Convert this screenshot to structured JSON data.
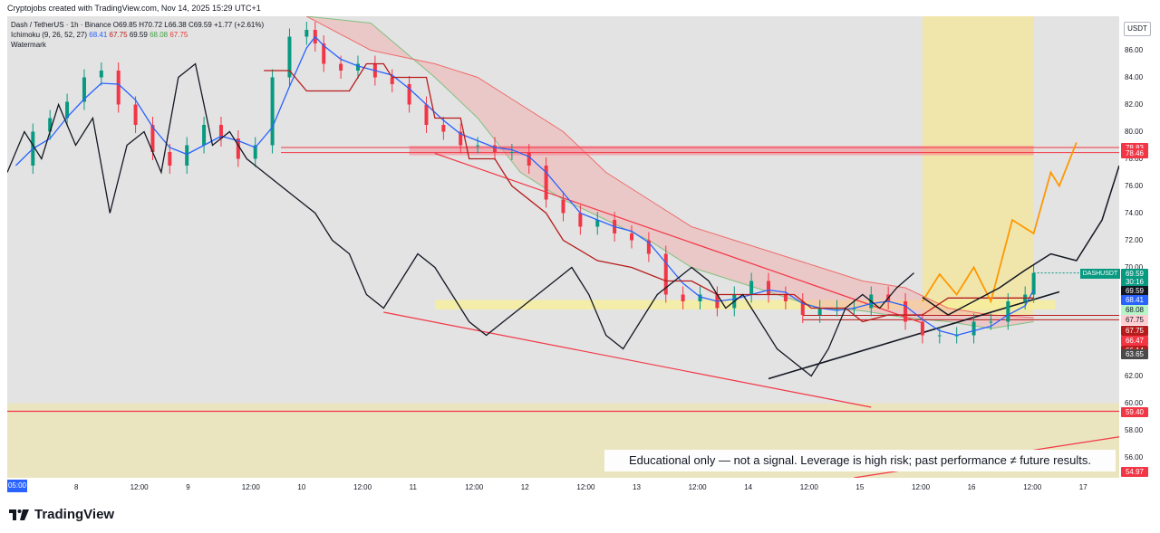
{
  "header": {
    "credit": "Cryptojobs created with TradingView.com, Nov 14, 2025 15:29 UTC+1"
  },
  "legend": {
    "line1": "Dash / TetherUS · 1h · Binance O69.85 H70.72 L66.38 C69.59 +1.77 (+2.61%)",
    "ichimoku_label": "Ichimoku (9, 26, 52, 27)",
    "ich_v1": "68.41",
    "ich_v2": "67.75",
    "ich_v3": "69.59",
    "ich_v4": "68.08",
    "ich_v5": "67.75",
    "watermark": "Watermark"
  },
  "price_axis": {
    "currency": "USDT",
    "ticks": [
      "86.00",
      "84.00",
      "82.00",
      "80.00",
      "78.00",
      "76.00",
      "74.00",
      "72.00",
      "70.00",
      "68.00",
      "66.00",
      "64.00",
      "62.00",
      "60.00",
      "58.00",
      "56.00"
    ],
    "symbol_tag": "DASHUSDT",
    "tags": [
      {
        "label": "78.83",
        "value": 78.83,
        "color": "#f23645"
      },
      {
        "label": "78.46",
        "value": 78.46,
        "color": "#f23645"
      },
      {
        "label": "69.59",
        "value": 69.59,
        "color": "#089981"
      },
      {
        "label": "30:16",
        "value": 68.95,
        "color": "#089981"
      },
      {
        "label": "69.59",
        "value": 68.3,
        "color": "#131722"
      },
      {
        "label": "68.41",
        "value": 67.65,
        "color": "#2962ff"
      },
      {
        "label": "68.08",
        "value": 66.9,
        "color": "#b7f5c8",
        "text": "#131722"
      },
      {
        "label": "67.75",
        "value": 66.15,
        "color": "#ffcdd2",
        "text": "#131722"
      },
      {
        "label": "67.75",
        "value": 65.4,
        "color": "#b71c1c"
      },
      {
        "label": "66.47",
        "value": 64.65,
        "color": "#f23645"
      },
      {
        "label": "66.14",
        "value": 63.9,
        "color": "#b71c1c"
      },
      {
        "label": "63.65",
        "value": 63.65,
        "color": "#4a4a4a"
      },
      {
        "label": "59.40",
        "value": 59.4,
        "color": "#f23645"
      },
      {
        "label": "54.97",
        "value": 54.97,
        "color": "#f23645"
      }
    ]
  },
  "time_axis": {
    "start": "05:00",
    "labels": [
      "8",
      "12:00",
      "9",
      "12:00",
      "10",
      "12:00",
      "11",
      "12:00",
      "12",
      "12:00",
      "13",
      "12:00",
      "14",
      "12:00",
      "15",
      "12:00",
      "16",
      "12:00",
      "17"
    ]
  },
  "disclaimer": "Educational only — not a signal. Leverage is high risk; past performance ≠ future results.",
  "brand": "TradingView",
  "chart_data": {
    "type": "line",
    "title": "Dash / TetherUS · 1h · Binance",
    "ylabel": "USDT",
    "ylim": [
      54.5,
      88.5
    ],
    "x_range_hours": [
      0,
      260
    ],
    "close_series": [
      [
        2,
        77.5
      ],
      [
        6,
        80
      ],
      [
        10,
        81
      ],
      [
        14,
        82.2
      ],
      [
        18,
        84
      ],
      [
        22,
        84.5
      ],
      [
        26,
        82
      ],
      [
        30,
        80.5
      ],
      [
        34,
        78.5
      ],
      [
        38,
        77.5
      ],
      [
        42,
        79
      ],
      [
        46,
        80.5
      ],
      [
        50,
        79.5
      ],
      [
        54,
        78
      ],
      [
        58,
        79
      ],
      [
        62,
        84
      ],
      [
        66,
        87
      ],
      [
        70,
        87.5
      ],
      [
        72,
        86.5
      ],
      [
        74,
        85
      ],
      [
        78,
        84.5
      ],
      [
        82,
        85
      ],
      [
        86,
        84
      ],
      [
        90,
        83.5
      ],
      [
        94,
        82
      ],
      [
        98,
        80.5
      ],
      [
        102,
        80
      ],
      [
        106,
        79
      ],
      [
        110,
        79
      ],
      [
        114,
        78.5
      ],
      [
        118,
        78.5
      ],
      [
        122,
        77.5
      ],
      [
        126,
        75
      ],
      [
        130,
        74
      ],
      [
        134,
        73
      ],
      [
        138,
        73.5
      ],
      [
        142,
        72.5
      ],
      [
        146,
        72
      ],
      [
        150,
        71
      ],
      [
        154,
        68
      ],
      [
        158,
        67.5
      ],
      [
        162,
        68
      ],
      [
        166,
        67
      ],
      [
        170,
        68
      ],
      [
        174,
        69
      ],
      [
        178,
        68
      ],
      [
        182,
        67.5
      ],
      [
        186,
        66.5
      ],
      [
        190,
        67
      ],
      [
        194,
        67
      ],
      [
        198,
        67
      ],
      [
        202,
        68
      ],
      [
        206,
        67.5
      ],
      [
        210,
        66
      ],
      [
        214,
        65
      ],
      [
        218,
        65
      ],
      [
        222,
        65
      ],
      [
        226,
        66
      ],
      [
        230,
        66
      ],
      [
        234,
        67.5
      ],
      [
        238,
        68
      ],
      [
        240,
        69.59
      ]
    ],
    "series": [
      {
        "name": "Ichimoku Conversion (9)",
        "color": "#2962ff"
      },
      {
        "name": "Ichimoku Base (26)",
        "color": "#b71c1c"
      },
      {
        "name": "Lagging Span (27)",
        "color": "#131722"
      },
      {
        "name": "Cloud Leading Span A",
        "color": "#43a047"
      },
      {
        "name": "Cloud Leading Span B",
        "color": "#e53935"
      }
    ],
    "resistance_zone": [
      78.46,
      78.83
    ],
    "support_levels": [
      66.14,
      66.47,
      59.4
    ],
    "projection_target": 78.83,
    "annotations": [
      "Descending channel upper line",
      "Descending channel lower line",
      "Ascending trendline",
      "Projected path (orange)",
      "Projected path (black)"
    ]
  }
}
